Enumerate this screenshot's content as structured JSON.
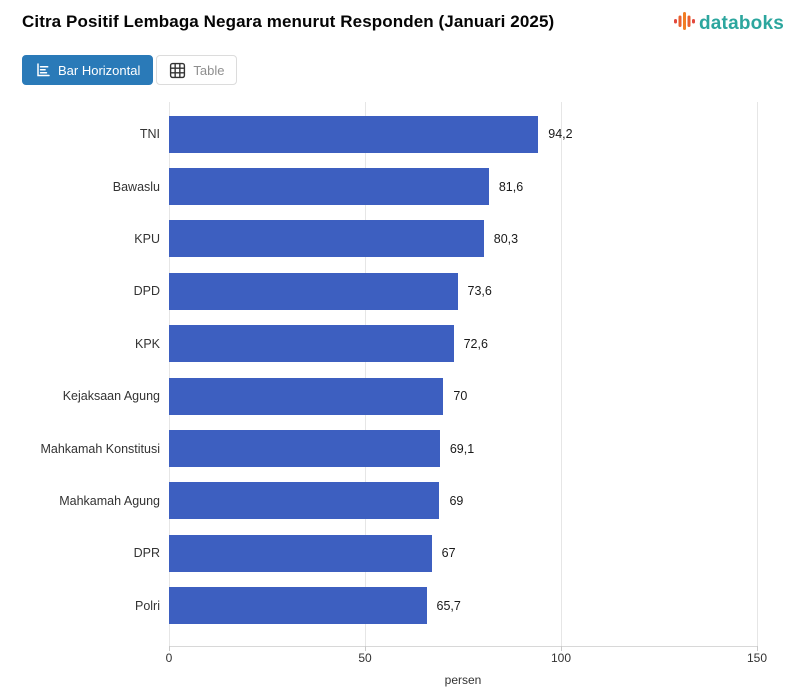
{
  "page": {
    "title": "Citra Positif Lembaga Negara menurut Responden (Januari 2025)"
  },
  "brand": {
    "name": "databoks",
    "text_color": "#2ca69e",
    "icon_colors": [
      "#e2483d",
      "#e9602f",
      "#f17d23",
      "#e9602f",
      "#e2483d"
    ]
  },
  "toolbar": {
    "tabs": [
      {
        "label": "Bar Horizontal",
        "active": true
      },
      {
        "label": "Table",
        "active": false
      }
    ],
    "active_tab_color": "#2a7ab8"
  },
  "chart_data": {
    "type": "bar",
    "orientation": "horizontal",
    "title": "Citra Positif Lembaga Negara menurut Responden (Januari 2025)",
    "categories": [
      "TNI",
      "Bawaslu",
      "KPU",
      "DPD",
      "KPK",
      "Kejaksaan Agung",
      "Mahkamah Konstitusi",
      "Mahkamah Agung",
      "DPR",
      "Polri"
    ],
    "values": [
      94.2,
      81.6,
      80.3,
      73.6,
      72.6,
      70,
      69.1,
      69,
      67,
      65.7
    ],
    "value_labels": [
      "94,2",
      "81,6",
      "80,3",
      "73,6",
      "72,6",
      "70",
      "69,1",
      "69",
      "67",
      "65,7"
    ],
    "xlabel": "persen",
    "xlim": [
      0,
      150
    ],
    "xticks": [
      0,
      50,
      100,
      150
    ],
    "grid": "vertical gridlines at ticks",
    "legend": "none",
    "bar_color": "#3d5fc0"
  }
}
